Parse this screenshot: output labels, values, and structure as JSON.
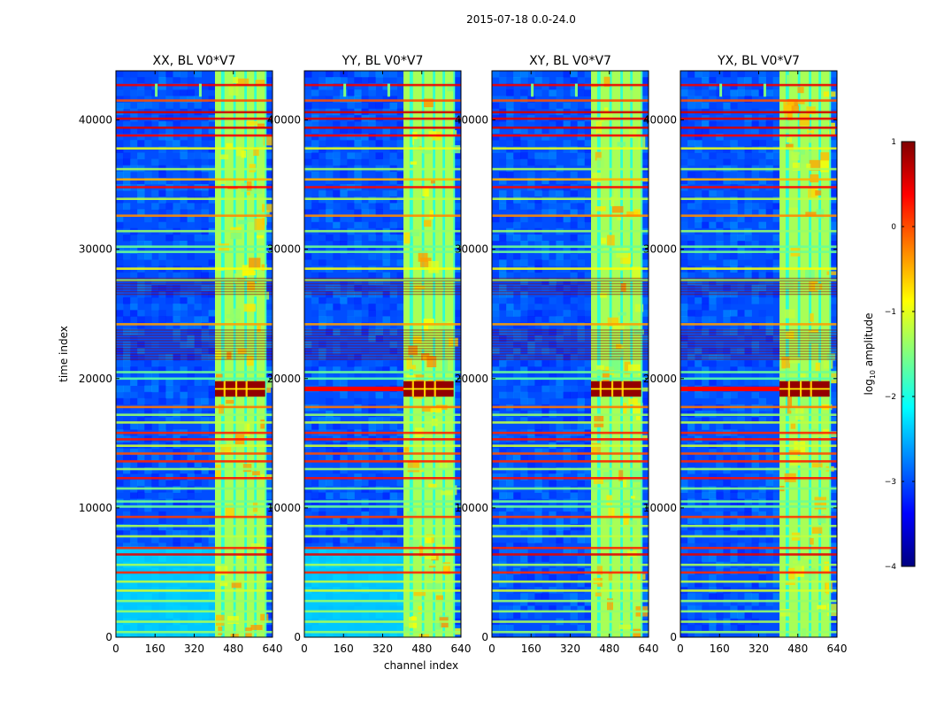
{
  "chart_data": {
    "type": "heatmap",
    "suptitle": "2015-07-18 0.0-24.0",
    "xlabel": "channel index",
    "ylabel": "time index",
    "x_range": [
      0,
      640
    ],
    "y_range": [
      0,
      43800
    ],
    "x_ticks": [
      0,
      160,
      320,
      480,
      640
    ],
    "y_ticks": [
      0,
      10000,
      20000,
      30000,
      40000
    ],
    "colorbar": {
      "label": "log10 amplitude",
      "label_main": "log",
      "label_sub": "10",
      "label_rest": " amplitude",
      "range": [
        -4,
        1
      ],
      "ticks": [
        -4,
        -3,
        -2,
        -1,
        0,
        1
      ],
      "tick_labels": [
        "−4",
        "−3",
        "−2",
        "−1",
        "0",
        "1"
      ],
      "colormap": "jet"
    },
    "features": {
      "rfi_channel_band": [
        405,
        610
      ],
      "background_log_amplitude": -3.0,
      "rfi_log_amplitude": -1.3,
      "saturated_event_time": [
        18600,
        19800
      ],
      "saturated_event_log_amplitude": 0.9,
      "flagged_time_blocks": [
        [
          21500,
          23800
        ],
        [
          26500,
          27800
        ]
      ]
    },
    "panels": [
      {
        "title": "XX, BL V0*V7",
        "polarization": "XX",
        "baseline": "V0*V7"
      },
      {
        "title": "YY, BL V0*V7",
        "polarization": "YY",
        "baseline": "V0*V7"
      },
      {
        "title": "XY, BL V0*V7",
        "polarization": "XY",
        "baseline": "V0*V7"
      },
      {
        "title": "YX, BL V0*V7",
        "polarization": "YX",
        "baseline": "V0*V7"
      }
    ]
  }
}
